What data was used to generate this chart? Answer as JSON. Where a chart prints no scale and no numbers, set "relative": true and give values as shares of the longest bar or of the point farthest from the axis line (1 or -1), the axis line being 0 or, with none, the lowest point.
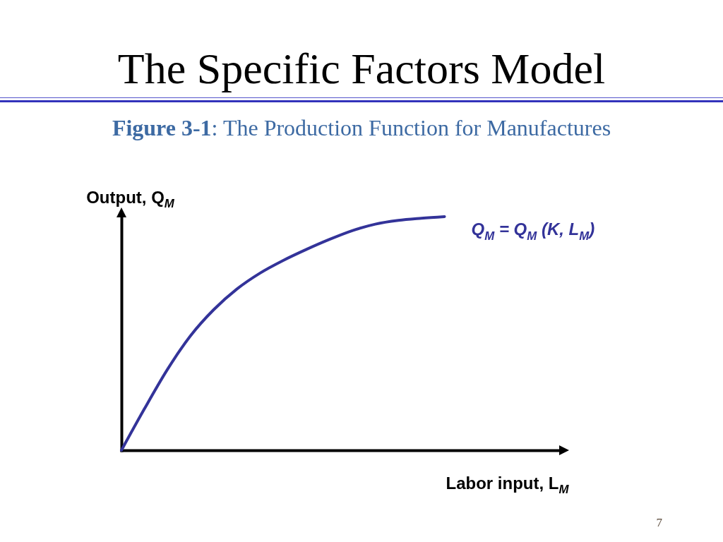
{
  "chart_data": {
    "type": "line",
    "title": "The Specific Factors Model",
    "subtitle": "Figure 3-1: The Production Function for Manufactures",
    "xlabel": "Labor input, L$_{M}$",
    "ylabel": "Output, Q$_{M}$",
    "categories": [
      null,
      null,
      null,
      null,
      null,
      null,
      null,
      null,
      null,
      null,
      null,
      null,
      null,
      null,
      null,
      null,
      null,
      null,
      null,
      null
    ],
    "relative": true,
    "series": [
      {
        "name": "Q$_{M}$ = Q$_{M}$ (K, L$_{M}$)",
        "color": "#333399",
        "values": [
          0,
          0.178,
          0.347,
          0.491,
          0.602,
          0.69,
          0.758,
          0.812,
          0.859,
          0.902,
          0.94,
          0.968,
          0.984,
          0.993,
          1,
          null,
          null,
          null,
          null,
          null
        ]
      }
    ],
    "annotations": [
      "7"
    ]
  }
}
